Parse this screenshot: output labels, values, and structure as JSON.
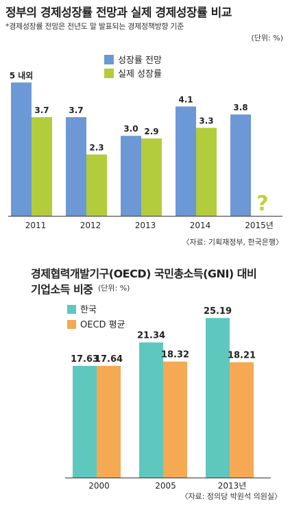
{
  "colors": {
    "blue": "#6d98d6",
    "green": "#b2cc3b",
    "teal": "#5ec7be",
    "orange": "#f5a953",
    "question": "#c5cf3c"
  },
  "chart1": {
    "title": "정부의 경제성장률 전망과 실제 경제성장률 비교",
    "note": "*경제성장률 전망은 전년도 말 발표되는 경제정책방향 기준",
    "unit": "(단위: %)",
    "source": "〈자료: 기획재정부, 한국은행〉"
  },
  "chart2": {
    "title_line1": "경제협력개발기구(OECD) 국민총소득(GNI) 대비",
    "title_line2": "기업소득 비중",
    "unit": "(단위: %)",
    "source": "〈자료: 정의당 박원석 의원실〉"
  },
  "chart_data": [
    {
      "type": "bar",
      "title": "정부의 경제성장률 전망과 실제 경제성장률 비교",
      "categories": [
        "2011",
        "2012",
        "2013",
        "2014",
        "2015년"
      ],
      "ylim": [
        0,
        6.5
      ],
      "legend_position": "top-center",
      "series": [
        {
          "name": "성장률 전망",
          "color": "#6d98d6",
          "values": [
            5,
            3.7,
            3.0,
            4.1,
            3.8
          ],
          "labels": [
            "5 내외",
            "3.7",
            "3.0",
            "4.1",
            "3.8"
          ]
        },
        {
          "name": "실제 성장률",
          "color": "#b2cc3b",
          "values": [
            3.7,
            2.3,
            2.9,
            3.3,
            null
          ],
          "labels": [
            "3.7",
            "2.3",
            "2.9",
            "3.3",
            "?"
          ]
        }
      ]
    },
    {
      "type": "bar",
      "title": "경제협력개발기구(OECD) 국민총소득(GNI) 대비 기업소득 비중",
      "categories": [
        "2000",
        "2005",
        "2013년"
      ],
      "ylim": [
        0,
        27.8
      ],
      "legend_position": "top-left",
      "series": [
        {
          "name": "한국",
          "color": "#5ec7be",
          "values": [
            17.63,
            21.34,
            25.19
          ],
          "labels": [
            "17.63",
            "21.34",
            "25.19"
          ]
        },
        {
          "name": "OECD 평균",
          "color": "#f5a953",
          "values": [
            17.64,
            18.32,
            18.21
          ],
          "labels": [
            "17.64",
            "18.32",
            "18.21"
          ]
        }
      ]
    }
  ]
}
